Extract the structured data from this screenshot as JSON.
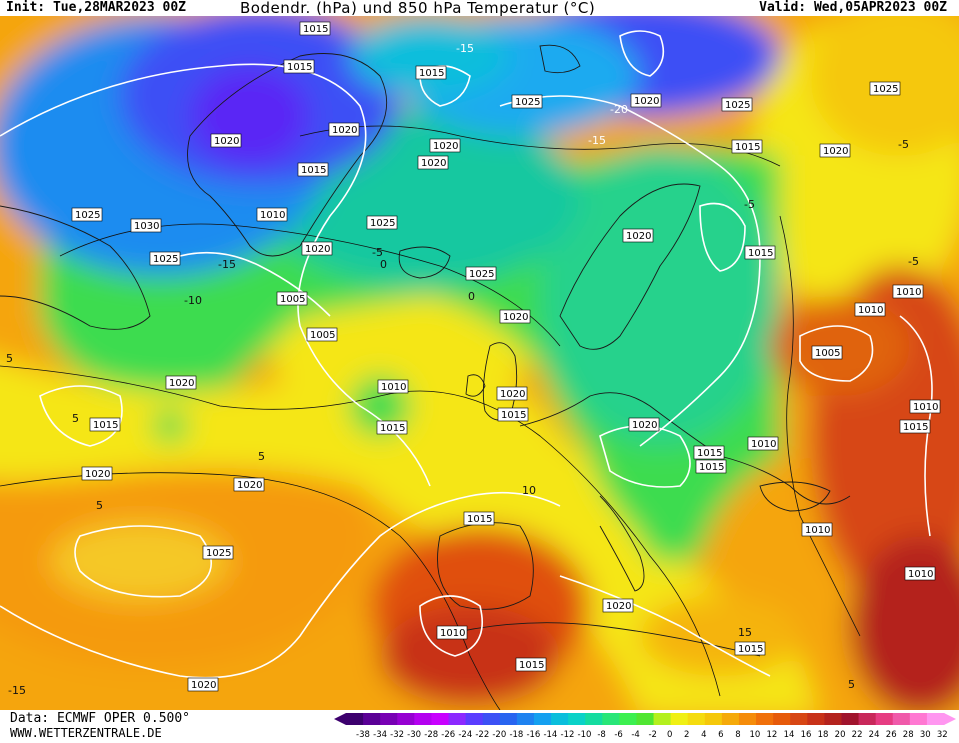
{
  "header": {
    "init": "Init: Tue,28MAR2023 00Z",
    "title": "Bodendr. (hPa) und 850 hPa Temperatur (°C)",
    "valid": "Valid: Wed,05APR2023 00Z"
  },
  "footer": {
    "data_source": "Data: ECMWF OPER 0.500°",
    "website": "WWW.WETTERZENTRALE.DE"
  },
  "legend": {
    "labels": [
      "-38",
      "-34",
      "-32",
      "-30",
      "-28",
      "-26",
      "-24",
      "-22",
      "-20",
      "-18",
      "-16",
      "-14",
      "-12",
      "-10",
      "-8",
      "-6",
      "-4",
      "-2",
      "0",
      "2",
      "4",
      "6",
      "8",
      "10",
      "12",
      "14",
      "16",
      "18",
      "20",
      "22",
      "24",
      "26",
      "28",
      "30",
      "32"
    ],
    "colors": [
      "#3c006e",
      "#5a0096",
      "#7800b4",
      "#9600d2",
      "#b400f0",
      "#c800ff",
      "#8c28ff",
      "#5a3cff",
      "#3c50f5",
      "#2864f0",
      "#1e82f0",
      "#14a0f0",
      "#0abedc",
      "#0ad2c8",
      "#14dca0",
      "#28e678",
      "#3cf050",
      "#50e632",
      "#b4f01e",
      "#f0f014",
      "#f5dc0f",
      "#f5c80a",
      "#f5aa0a",
      "#f58c0a",
      "#f0700a",
      "#e65a0a",
      "#d74614",
      "#c83219",
      "#b4231e",
      "#a0142d",
      "#c8285a",
      "#e63c82",
      "#f05aaa",
      "#ff78d2",
      "#ff96f0"
    ],
    "arrow_left_color": "#3c006e",
    "arrow_right_color": "#ff96f0"
  },
  "map": {
    "pressure_labels": [
      "1015",
      "1015",
      "1015",
      "1025",
      "1020",
      "1020",
      "1020",
      "1025",
      "1020",
      "1015",
      "1010",
      "1030",
      "1025",
      "1025",
      "1025",
      "1020",
      "1025",
      "1005",
      "1020",
      "1015",
      "1005",
      "1020",
      "1010",
      "1015",
      "1015",
      "1010",
      "1020",
      "1010",
      "1015",
      "1010",
      "1015",
      "1020",
      "1020",
      "1020",
      "1010",
      "1020",
      "1015",
      "1010",
      "1025",
      "1010",
      "1010",
      "1015",
      "1020",
      "1015",
      "1020",
      "1015",
      "1005",
      "1020",
      "1015",
      "1025",
      "1015",
      "1020"
    ],
    "temp_labels": [
      "-15",
      "-15",
      "-20",
      "-15",
      "-5",
      "-10",
      "-5",
      "0",
      "5",
      "5",
      "5",
      "0",
      "-5",
      "-5",
      "5",
      "10",
      "15",
      "-15",
      "5"
    ],
    "colors": {
      "isobar": "#ffffff",
      "isotherm": "#111111",
      "coastline": "#1a1a1a"
    }
  }
}
